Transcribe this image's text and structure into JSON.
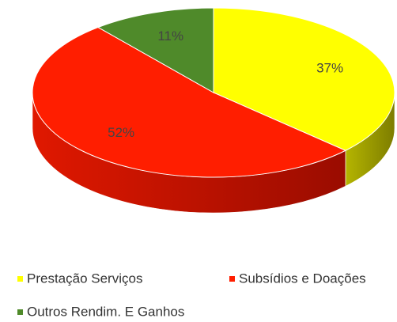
{
  "chart_data": {
    "type": "pie3d",
    "categories": [
      "Prestação Serviços",
      "Subsídios e Doações",
      "Outros Rendim. E Ganhos"
    ],
    "values": [
      37,
      52,
      11
    ],
    "value_labels": [
      "37%",
      "52%",
      "11%"
    ],
    "colors": [
      "#ffff00",
      "#ff1e00",
      "#4f8a2a"
    ],
    "legend": "bottom"
  }
}
